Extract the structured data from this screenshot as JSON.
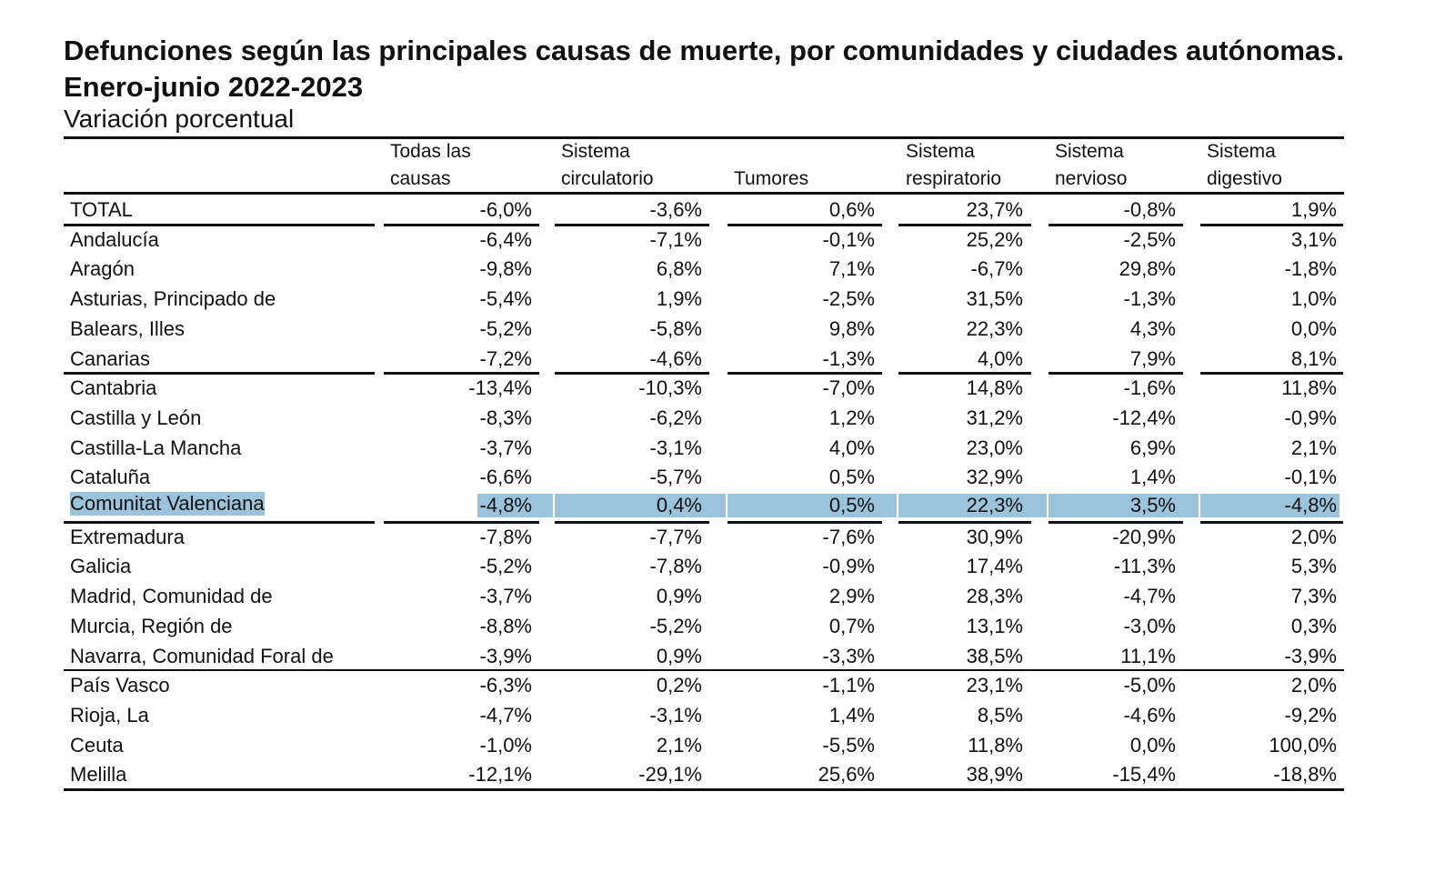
{
  "title": "Defunciones según las principales causas de muerte, por comunidades y ciudades autónomas. Enero-junio 2022-2023",
  "subtitle": "Variación porcentual",
  "highlight_color": "#9cc3dc",
  "highlighted_row": "Comunitat Valenciana",
  "columns": [
    {
      "line1": "Todas las",
      "line2": "causas"
    },
    {
      "line1": "Sistema",
      "line2": "circulatorio"
    },
    {
      "line1": "",
      "line2": "Tumores"
    },
    {
      "line1": "Sistema",
      "line2": "respiratorio"
    },
    {
      "line1": "Sistema",
      "line2": "nervioso"
    },
    {
      "line1": "Sistema",
      "line2": "digestivo"
    }
  ],
  "rows": [
    {
      "label": "TOTAL",
      "values": [
        "-6,0%",
        "-3,6%",
        "0,6%",
        "23,7%",
        "-0,8%",
        "1,9%"
      ]
    },
    {
      "label": "Andalucía",
      "values": [
        "-6,4%",
        "-7,1%",
        "-0,1%",
        "25,2%",
        "-2,5%",
        "3,1%"
      ]
    },
    {
      "label": "Aragón",
      "values": [
        "-9,8%",
        "6,8%",
        "7,1%",
        "-6,7%",
        "29,8%",
        "-1,8%"
      ]
    },
    {
      "label": "Asturias, Principado de",
      "values": [
        "-5,4%",
        "1,9%",
        "-2,5%",
        "31,5%",
        "-1,3%",
        "1,0%"
      ]
    },
    {
      "label": "Balears, Illes",
      "values": [
        "-5,2%",
        "-5,8%",
        "9,8%",
        "22,3%",
        "4,3%",
        "0,0%"
      ]
    },
    {
      "label": "Canarias",
      "values": [
        "-7,2%",
        "-4,6%",
        "-1,3%",
        "4,0%",
        "7,9%",
        "8,1%"
      ]
    },
    {
      "label": "Cantabria",
      "values": [
        "-13,4%",
        "-10,3%",
        "-7,0%",
        "14,8%",
        "-1,6%",
        "11,8%"
      ]
    },
    {
      "label": "Castilla y León",
      "values": [
        "-8,3%",
        "-6,2%",
        "1,2%",
        "31,2%",
        "-12,4%",
        "-0,9%"
      ]
    },
    {
      "label": "Castilla-La Mancha",
      "values": [
        "-3,7%",
        "-3,1%",
        "4,0%",
        "23,0%",
        "6,9%",
        "2,1%"
      ]
    },
    {
      "label": "Cataluña",
      "values": [
        "-6,6%",
        "-5,7%",
        "0,5%",
        "32,9%",
        "1,4%",
        "-0,1%"
      ]
    },
    {
      "label": "Comunitat Valenciana",
      "values": [
        "-4,8%",
        "0,4%",
        "0,5%",
        "22,3%",
        "3,5%",
        "-4,8%"
      ]
    },
    {
      "label": "Extremadura",
      "values": [
        "-7,8%",
        "-7,7%",
        "-7,6%",
        "30,9%",
        "-20,9%",
        "2,0%"
      ]
    },
    {
      "label": "Galicia",
      "values": [
        "-5,2%",
        "-7,8%",
        "-0,9%",
        "17,4%",
        "-11,3%",
        "5,3%"
      ]
    },
    {
      "label": "Madrid, Comunidad de",
      "values": [
        "-3,7%",
        "0,9%",
        "2,9%",
        "28,3%",
        "-4,7%",
        "7,3%"
      ]
    },
    {
      "label": "Murcia, Región de",
      "values": [
        "-8,8%",
        "-5,2%",
        "0,7%",
        "13,1%",
        "-3,0%",
        "0,3%"
      ]
    },
    {
      "label": "Navarra, Comunidad Foral de",
      "values": [
        "-3,9%",
        "0,9%",
        "-3,3%",
        "38,5%",
        "11,1%",
        "-3,9%"
      ]
    },
    {
      "label": "País Vasco",
      "values": [
        "-6,3%",
        "0,2%",
        "-1,1%",
        "23,1%",
        "-5,0%",
        "2,0%"
      ]
    },
    {
      "label": "Rioja, La",
      "values": [
        "-4,7%",
        "-3,1%",
        "1,4%",
        "8,5%",
        "-4,6%",
        "-9,2%"
      ]
    },
    {
      "label": "Ceuta",
      "values": [
        "-1,0%",
        "2,1%",
        "-5,5%",
        "11,8%",
        "0,0%",
        "100,0%"
      ]
    },
    {
      "label": "Melilla",
      "values": [
        "-12,1%",
        "-29,1%",
        "25,6%",
        "38,9%",
        "-15,4%",
        "-18,8%"
      ]
    }
  ]
}
